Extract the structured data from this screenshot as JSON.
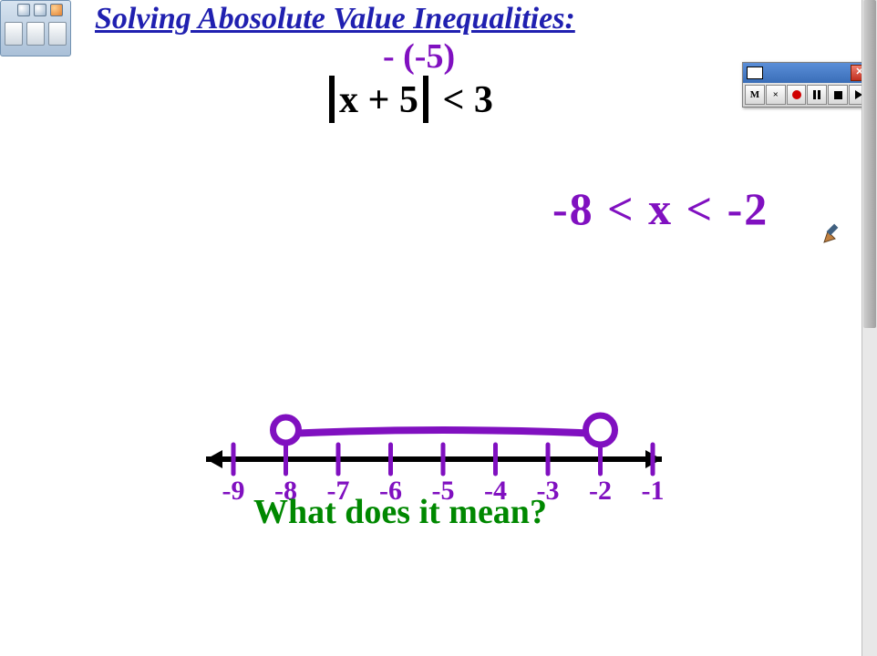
{
  "title": "Solving Abosolute Value Inequalities:",
  "annotation_top": "- (-5)",
  "equation": {
    "inner": "x + 5",
    "rest": " <  3"
  },
  "solution": "-8 < x < -2",
  "question": "What does it mean?",
  "colors": {
    "title": "#2020b0",
    "handwriting": "#8010c0",
    "question": "#008800",
    "axis": "#000000"
  },
  "number_line": {
    "labels": [
      "-9",
      "-8",
      "-7",
      "-6",
      "-5",
      "-4",
      "-3",
      "-2",
      "-1"
    ],
    "tick_color": "#8010c0",
    "label_color": "#8010c0",
    "label_fontsize": 30,
    "axis_color": "#000000",
    "open_circle_left_index": 1,
    "open_circle_right_index": 7,
    "interval_color": "#8010c0",
    "circle_stroke_width": 7,
    "interval_stroke_width": 8
  },
  "recorder": {
    "buttons": {
      "m": "M",
      "x": "×"
    }
  }
}
